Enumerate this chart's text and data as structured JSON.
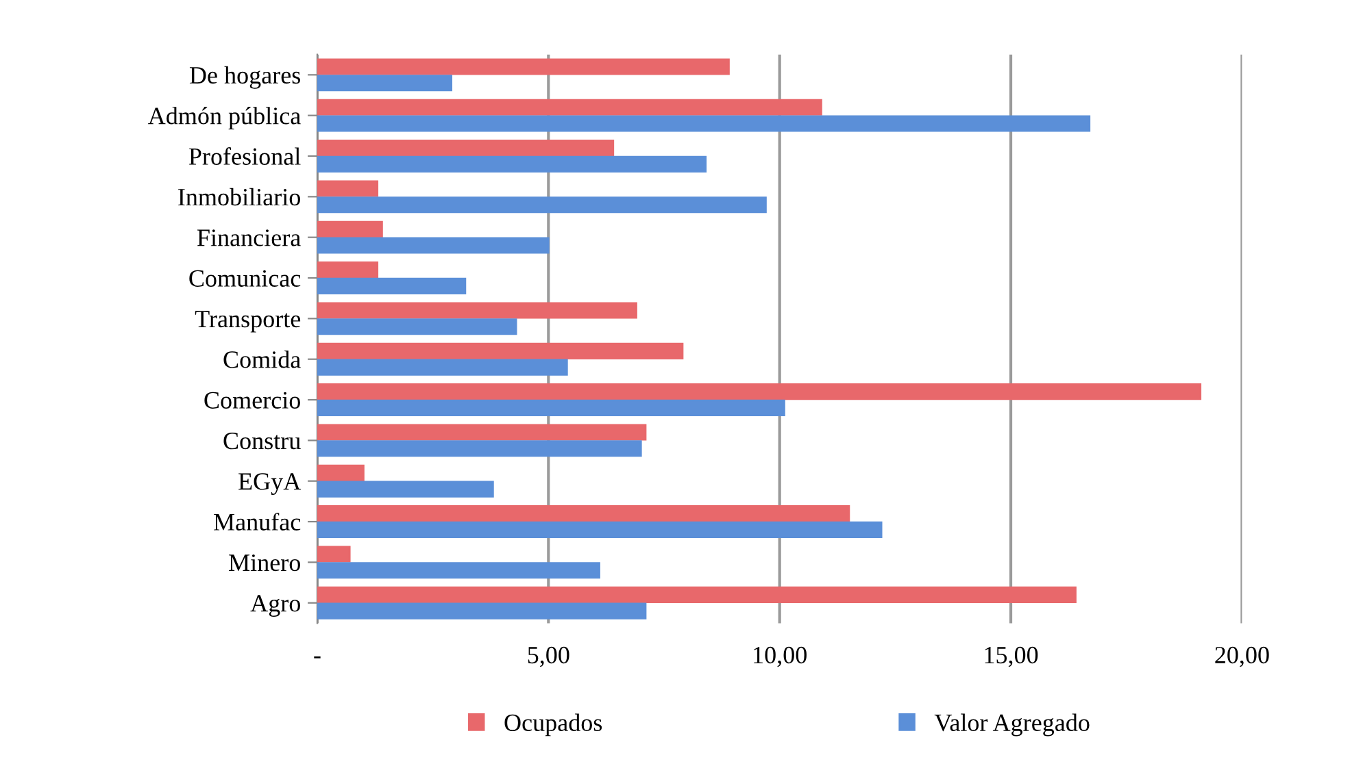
{
  "chart_data": {
    "type": "bar",
    "orientation": "horizontal",
    "categories": [
      "De hogares",
      "Admón pública",
      "Profesional",
      "Inmobiliario",
      "Financiera",
      "Comunicac",
      "Transporte",
      "Comida",
      "Comercio",
      "Constru",
      "EGyA",
      "Manufac",
      "Minero",
      "Agro"
    ],
    "series": [
      {
        "name": "Ocupados",
        "color": "#e8686b",
        "values": [
          8.9,
          10.9,
          6.4,
          1.3,
          1.4,
          1.3,
          6.9,
          7.9,
          19.1,
          7.1,
          1.0,
          11.5,
          0.7,
          16.4
        ]
      },
      {
        "name": "Valor Agregado",
        "color": "#5b8fd8",
        "values": [
          2.9,
          16.7,
          8.4,
          9.7,
          5.0,
          3.2,
          4.3,
          5.4,
          10.1,
          7.0,
          3.8,
          12.2,
          6.1,
          7.1
        ]
      }
    ],
    "xlim": [
      0,
      20
    ],
    "xticks": [
      {
        "value": 0,
        "label": "-"
      },
      {
        "value": 5,
        "label": "5,00"
      },
      {
        "value": 10,
        "label": "10,00"
      },
      {
        "value": 15,
        "label": "15,00"
      },
      {
        "value": 20,
        "label": "20,00"
      }
    ],
    "grid": "x",
    "legend": "bottom"
  }
}
